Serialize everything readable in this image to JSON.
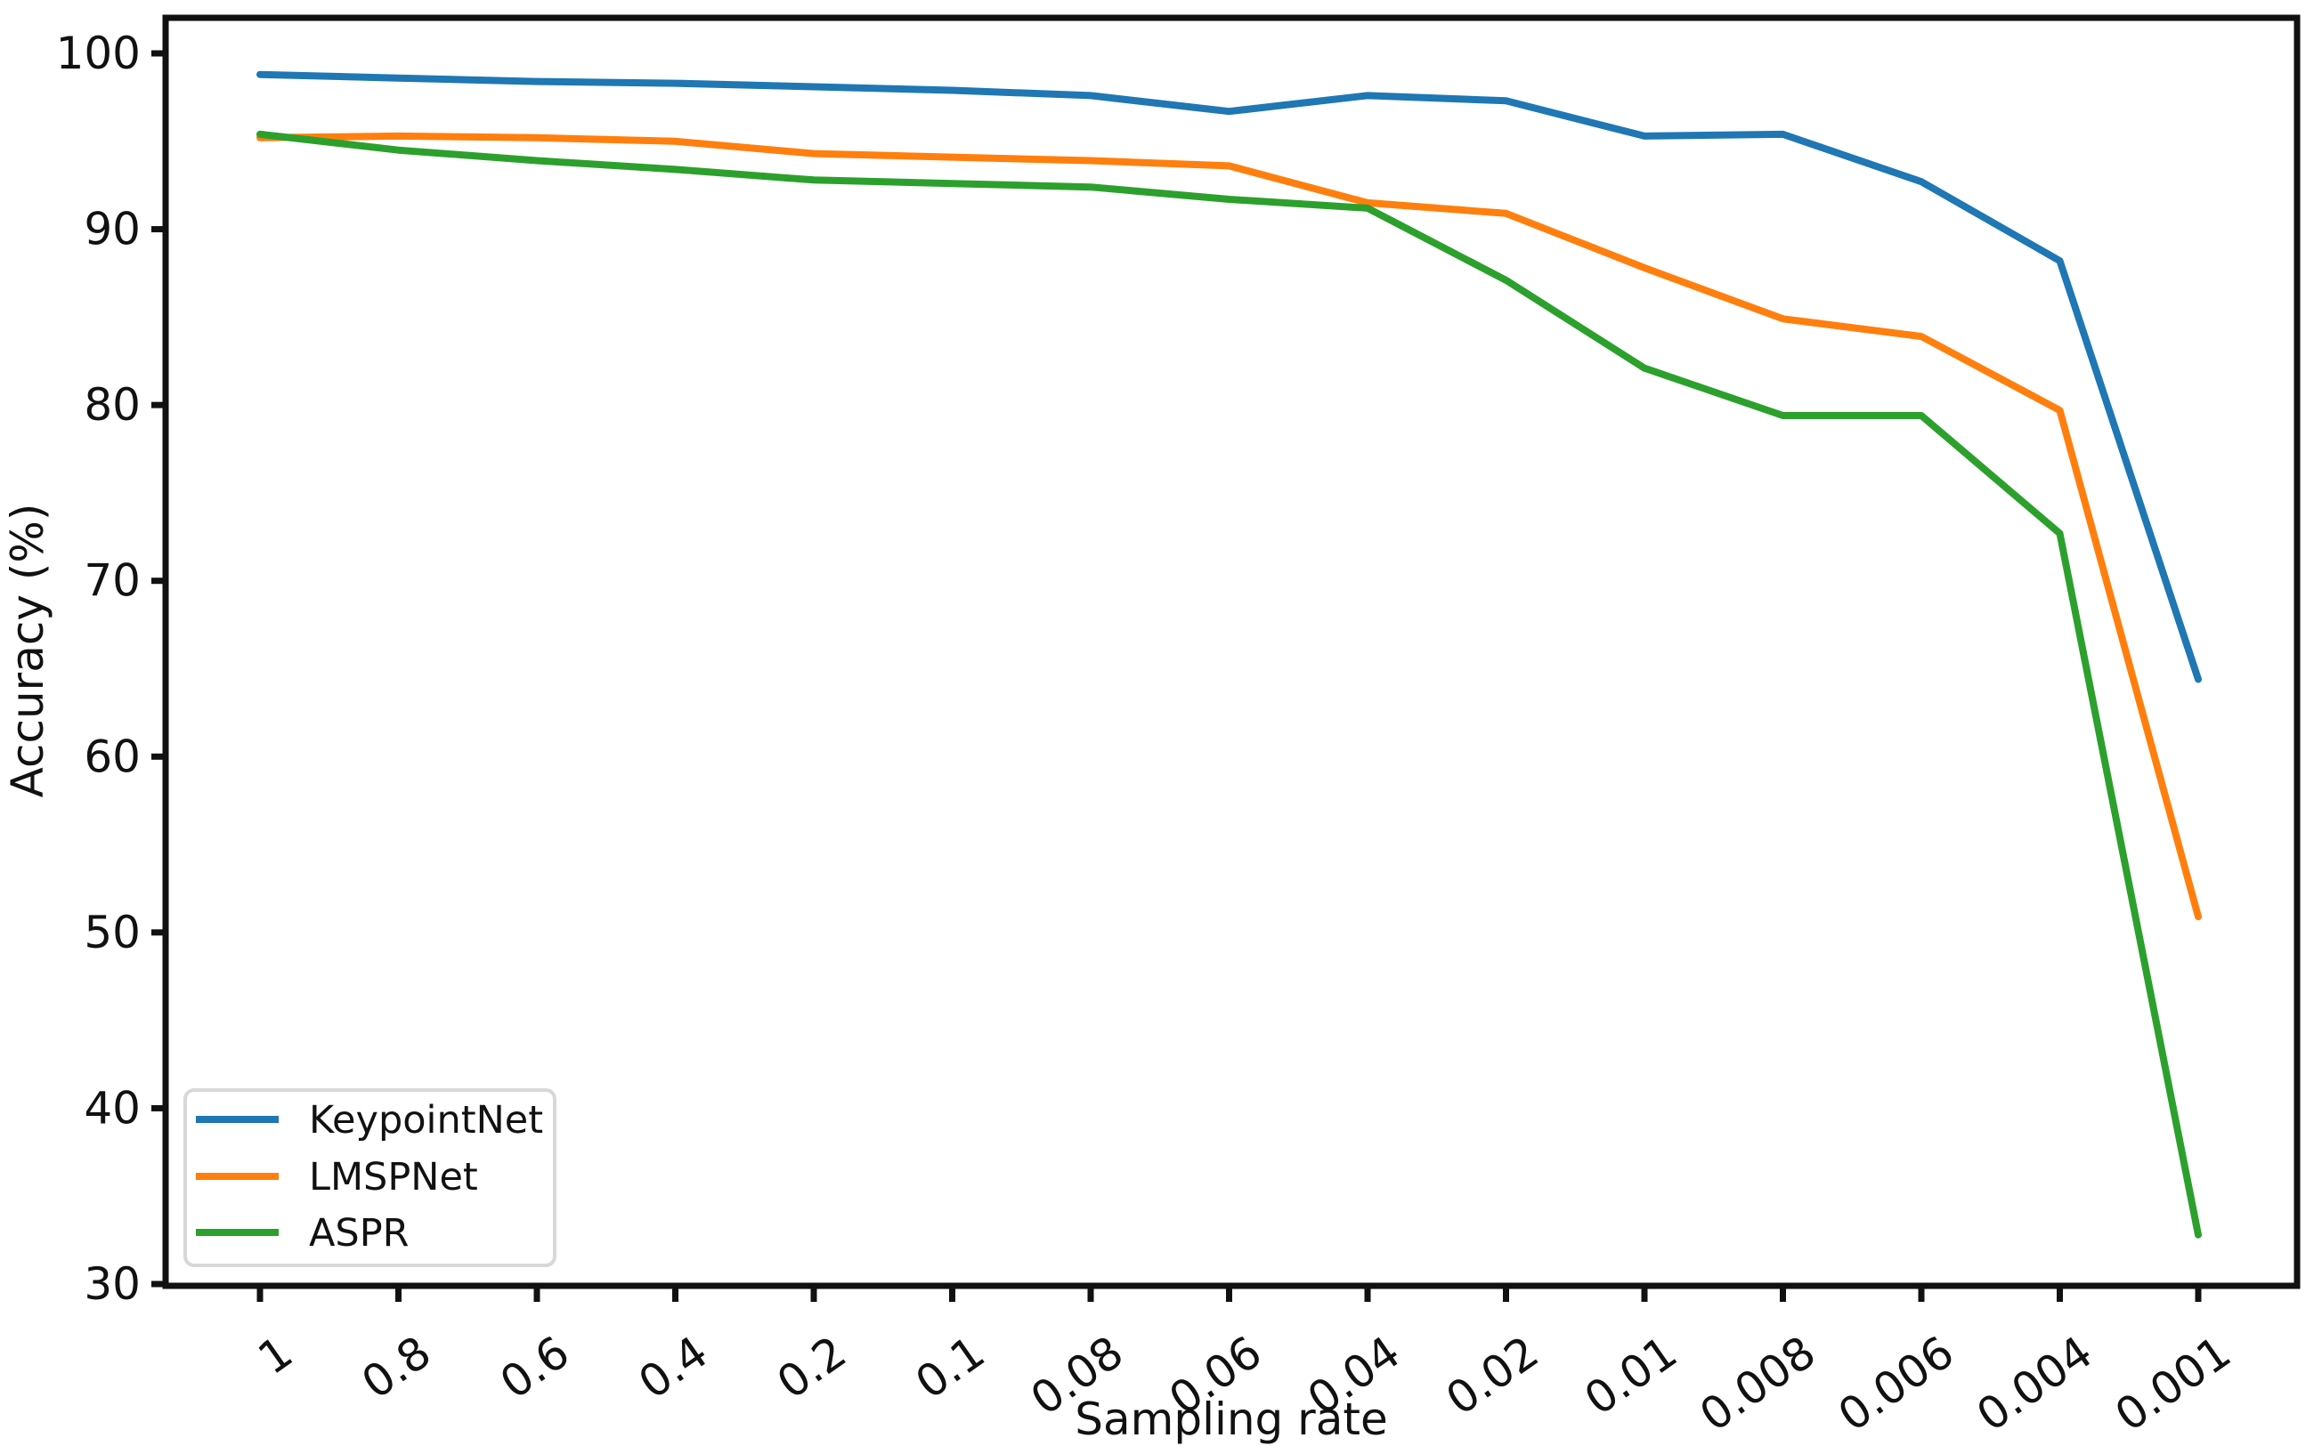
{
  "figure": {
    "background": "#ffffff"
  },
  "chart_data": {
    "type": "line",
    "title": "",
    "xlabel": "Sampling rate",
    "ylabel": "Accuracy (%)",
    "categories": [
      "1",
      "0.8",
      "0.6",
      "0.4",
      "0.2",
      "0.1",
      "0.08",
      "0.06",
      "0.04",
      "0.02",
      "0.01",
      "0.008",
      "0.006",
      "0.004",
      "0.001"
    ],
    "series": [
      {
        "name": "KeypointNet",
        "color": "#1f77b4",
        "values": [
          98.8,
          98.6,
          98.4,
          98.3,
          98.1,
          97.9,
          97.6,
          96.7,
          97.6,
          97.3,
          95.3,
          95.4,
          92.7,
          88.2,
          64.4
        ]
      },
      {
        "name": "LMSPNet",
        "color": "#ff7f0e",
        "values": [
          95.2,
          95.3,
          95.2,
          95.0,
          94.3,
          94.1,
          93.9,
          93.6,
          91.5,
          90.9,
          87.8,
          84.9,
          83.9,
          79.7,
          50.9
        ]
      },
      {
        "name": "ASPR",
        "color": "#2ca02c",
        "values": [
          95.4,
          94.5,
          93.9,
          93.4,
          92.8,
          92.6,
          92.4,
          91.7,
          91.2,
          87.1,
          82.1,
          79.4,
          79.4,
          72.7,
          32.8
        ]
      }
    ],
    "y_ticks": [
      30,
      40,
      50,
      60,
      70,
      80,
      90,
      100
    ],
    "ylim": [
      30,
      102.2
    ],
    "x_tick_rotation_deg": 35,
    "grid": false,
    "legend_position": "lower-left",
    "axis_color": "#111111",
    "legend_border_color": "#d8d8d8"
  }
}
